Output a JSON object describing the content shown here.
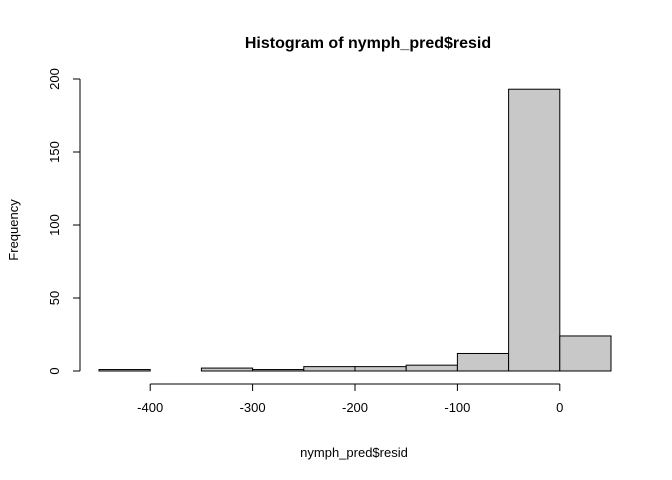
{
  "chart_data": {
    "type": "bar",
    "subtype": "histogram",
    "title": "Histogram of nymph_pred$resid",
    "xlabel": "nymph_pred$resid",
    "ylabel": "Frequency",
    "bins": [
      {
        "x0": -450,
        "x1": -400,
        "count": 1
      },
      {
        "x0": -400,
        "x1": -350,
        "count": 0
      },
      {
        "x0": -350,
        "x1": -300,
        "count": 2
      },
      {
        "x0": -300,
        "x1": -250,
        "count": 1
      },
      {
        "x0": -250,
        "x1": -200,
        "count": 3
      },
      {
        "x0": -200,
        "x1": -150,
        "count": 3
      },
      {
        "x0": -150,
        "x1": -100,
        "count": 4
      },
      {
        "x0": -100,
        "x1": -50,
        "count": 12
      },
      {
        "x0": -50,
        "x1": 0,
        "count": 193
      },
      {
        "x0": 0,
        "x1": 50,
        "count": 24
      }
    ],
    "xlim": [
      -450,
      50
    ],
    "ylim": [
      0,
      200
    ],
    "x_ticks": [
      -400,
      -300,
      -200,
      -100,
      0
    ],
    "y_ticks": [
      0,
      50,
      100,
      150,
      200
    ],
    "grid": false,
    "bar_color": "#c8c8c8",
    "edge_color": "#000000"
  }
}
